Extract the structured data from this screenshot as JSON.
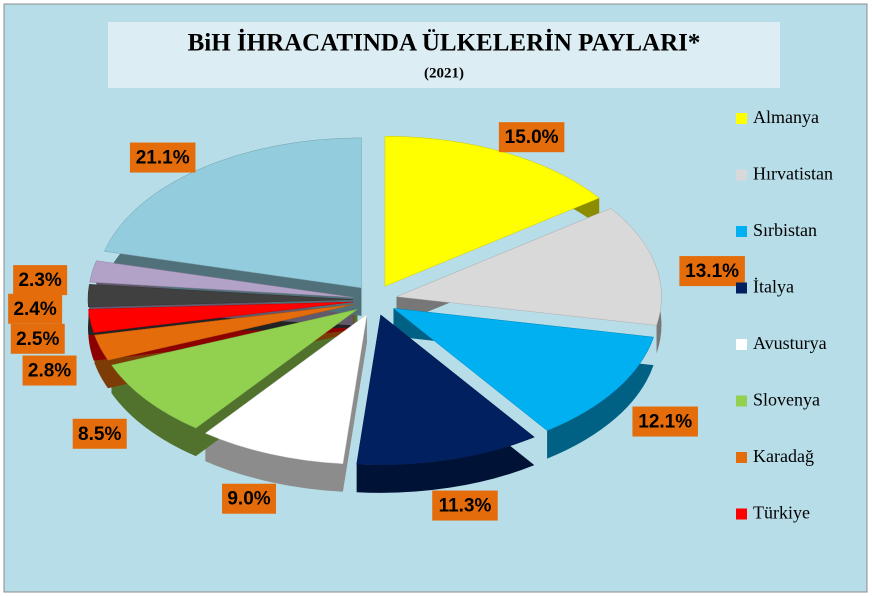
{
  "chart_data": {
    "type": "pie",
    "title": "BiH İHRACATINDA ÜLKELERİN PAYLARI*",
    "subtitle": "(2021)",
    "categories": [
      "Almanya",
      "Hırvatistan",
      "Sırbistan",
      "İtalya",
      "Avusturya",
      "Slovenya",
      "Karadağ",
      "Türkiye",
      null,
      null,
      null
    ],
    "values": [
      15.0,
      13.1,
      12.1,
      11.3,
      9.0,
      8.5,
      2.8,
      2.5,
      2.4,
      2.3,
      21.1
    ],
    "value_labels": [
      "15.0%",
      "13.1%",
      "12.1%",
      "11.3%",
      "9.0%",
      "8.5%",
      "2.8%",
      "2.5%",
      "2.4%",
      "2.3%",
      "21.1%"
    ],
    "colors": [
      "#ffff00",
      "#d9d9d9",
      "#00b0f0",
      "#002060",
      "#ffffff",
      "#92d050",
      "#e46c0a",
      "#ff0000",
      "#404040",
      "#b3a2c7",
      "#93cddd"
    ],
    "legend": "right"
  }
}
